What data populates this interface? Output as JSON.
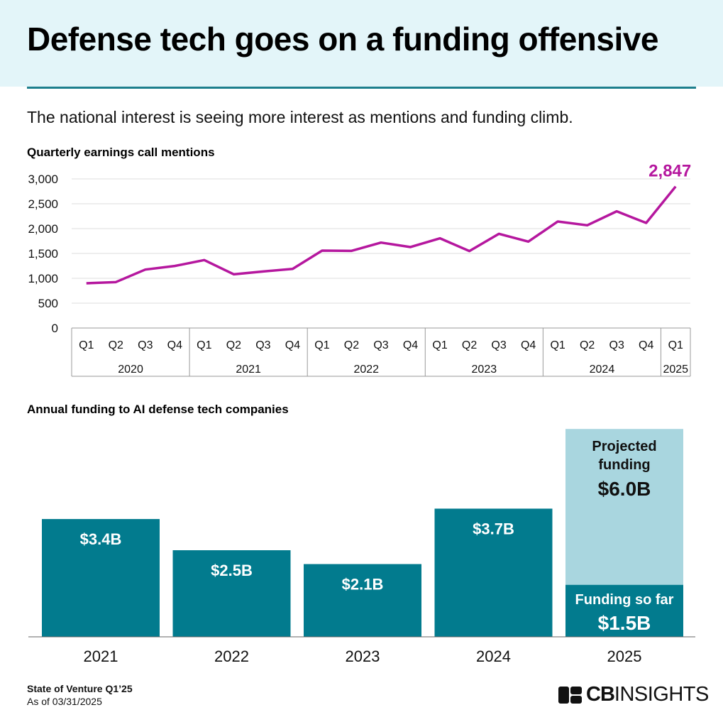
{
  "header": {
    "title": "Defense tech goes on a funding offensive",
    "subtitle": "The national interest is seeing more interest as mentions and funding climb."
  },
  "colors": {
    "line": "#b5179e",
    "bar": "#027b8e",
    "projected": "#a9d6df",
    "header_bg": "#e3f5f9"
  },
  "chart_data": [
    {
      "type": "line",
      "title": "Quarterly earnings call mentions",
      "quarters": [
        "Q1",
        "Q2",
        "Q3",
        "Q4",
        "Q1",
        "Q2",
        "Q3",
        "Q4",
        "Q1",
        "Q2",
        "Q3",
        "Q4",
        "Q1",
        "Q2",
        "Q3",
        "Q4",
        "Q1",
        "Q2",
        "Q3",
        "Q4",
        "Q1"
      ],
      "years": [
        {
          "label": "2020",
          "span": 4
        },
        {
          "label": "2021",
          "span": 4
        },
        {
          "label": "2022",
          "span": 4
        },
        {
          "label": "2023",
          "span": 4
        },
        {
          "label": "2024",
          "span": 4
        },
        {
          "label": "2025",
          "span": 1
        }
      ],
      "values": [
        900,
        924,
        1176,
        1248,
        1367,
        1081,
        1138,
        1190,
        1557,
        1552,
        1719,
        1629,
        1805,
        1548,
        1895,
        1738,
        2143,
        2067,
        2348,
        2114,
        2847
      ],
      "yticks": [
        {
          "v": 0,
          "label": "0"
        },
        {
          "v": 500,
          "label": "500"
        },
        {
          "v": 1000,
          "label": "1,000"
        },
        {
          "v": 1500,
          "label": "1,500"
        },
        {
          "v": 2000,
          "label": "2,000"
        },
        {
          "v": 2500,
          "label": "2,500"
        },
        {
          "v": 3000,
          "label": "3,000"
        }
      ],
      "ylim": [
        0,
        3000
      ],
      "end_label": "2,847",
      "grid": true
    },
    {
      "type": "bar",
      "title": "Annual funding to AI defense tech companies",
      "categories": [
        "2021",
        "2022",
        "2023",
        "2024",
        "2025"
      ],
      "values": [
        3.4,
        2.5,
        2.1,
        3.7,
        1.5
      ],
      "labels": [
        "$3.4B",
        "$2.5B",
        "$2.1B",
        "$3.7B",
        "$1.5B"
      ],
      "projected": {
        "value": 6.0,
        "label_line1": "Projected",
        "label_line2": "funding",
        "value_label": "$6.0B",
        "sofar_label": "Funding so far"
      },
      "unit": "$B"
    }
  ],
  "footer": {
    "source": "State of Venture Q1’25",
    "date": "As of 03/31/2025",
    "logo_cb": "CB",
    "logo_insights": "INSIGHTS"
  }
}
